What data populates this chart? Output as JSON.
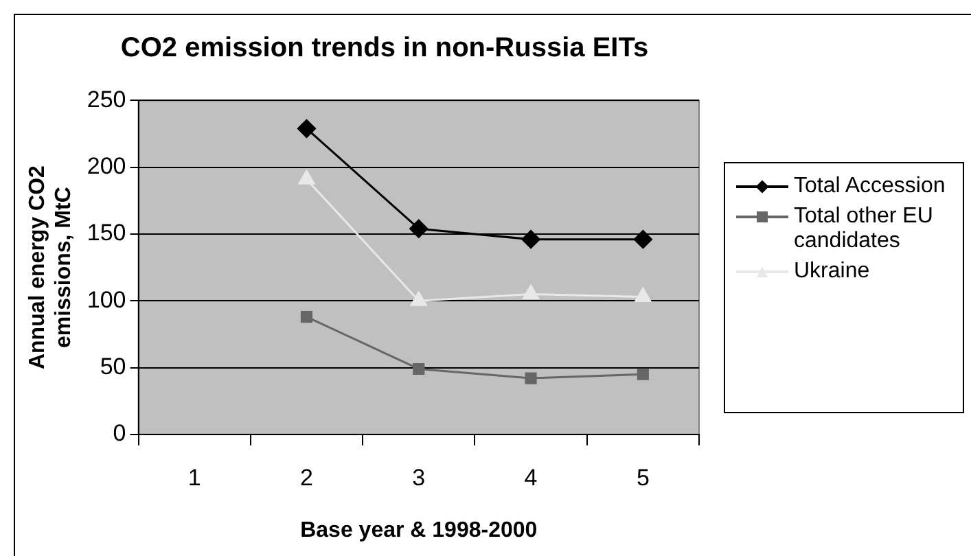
{
  "chart_data": {
    "type": "line",
    "title": "CO2 emission trends in non-Russia EITs",
    "xlabel": "Base year & 1998-2000",
    "ylabel": "Annual energy CO2 emissions, MtC",
    "categories": [
      "1",
      "2",
      "3",
      "4",
      "5"
    ],
    "series": [
      {
        "name": "Total Accession",
        "color": "#000000",
        "marker": "diamond",
        "values": [
          null,
          229,
          154,
          146,
          146
        ]
      },
      {
        "name": "Total other EU candidates",
        "color": "#666666",
        "marker": "square",
        "values": [
          null,
          88,
          49,
          42,
          45
        ]
      },
      {
        "name": "Ukraine",
        "color": "#e8e8e8",
        "marker": "triangle",
        "values": [
          null,
          191,
          100,
          105,
          103
        ]
      }
    ],
    "ylim": [
      0,
      250
    ],
    "yticks": [
      0,
      50,
      100,
      150,
      200,
      250
    ],
    "grid": "y",
    "legend": "right"
  }
}
